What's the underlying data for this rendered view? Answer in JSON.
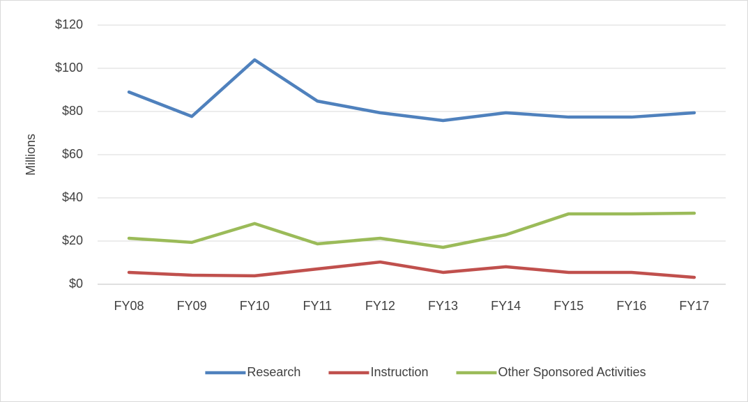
{
  "chart_data": {
    "type": "line",
    "ylabel": "Millions",
    "categories": [
      "FY08",
      "FY09",
      "FY10",
      "FY11",
      "FY12",
      "FY13",
      "FY14",
      "FY15",
      "FY16",
      "FY17"
    ],
    "series": [
      {
        "name": "Research",
        "color": "#4f81bd",
        "values": [
          89,
          77.7,
          103.9,
          84.8,
          79.4,
          75.8,
          79.4,
          77.4,
          77.4,
          79.4
        ]
      },
      {
        "name": "Instruction",
        "color": "#c0504d",
        "values": [
          5.5,
          4.2,
          3.9,
          7.1,
          10.3,
          5.5,
          8.1,
          5.5,
          5.5,
          3.2
        ]
      },
      {
        "name": "Other Sponsored Activities",
        "color": "#9bbb59",
        "values": [
          21.3,
          19.4,
          28.1,
          18.7,
          21.3,
          17.1,
          22.9,
          32.6,
          32.6,
          32.9
        ]
      }
    ],
    "ylim": [
      0,
      120
    ],
    "yticks": [
      {
        "value": 0,
        "label": "$0"
      },
      {
        "value": 20,
        "label": "$20"
      },
      {
        "value": 40,
        "label": "$40"
      },
      {
        "value": 60,
        "label": "$60"
      },
      {
        "value": 80,
        "label": "$80"
      },
      {
        "value": 100,
        "label": "$100"
      },
      {
        "value": 120,
        "label": "$120"
      }
    ],
    "grid": true,
    "legend": "bottom"
  }
}
